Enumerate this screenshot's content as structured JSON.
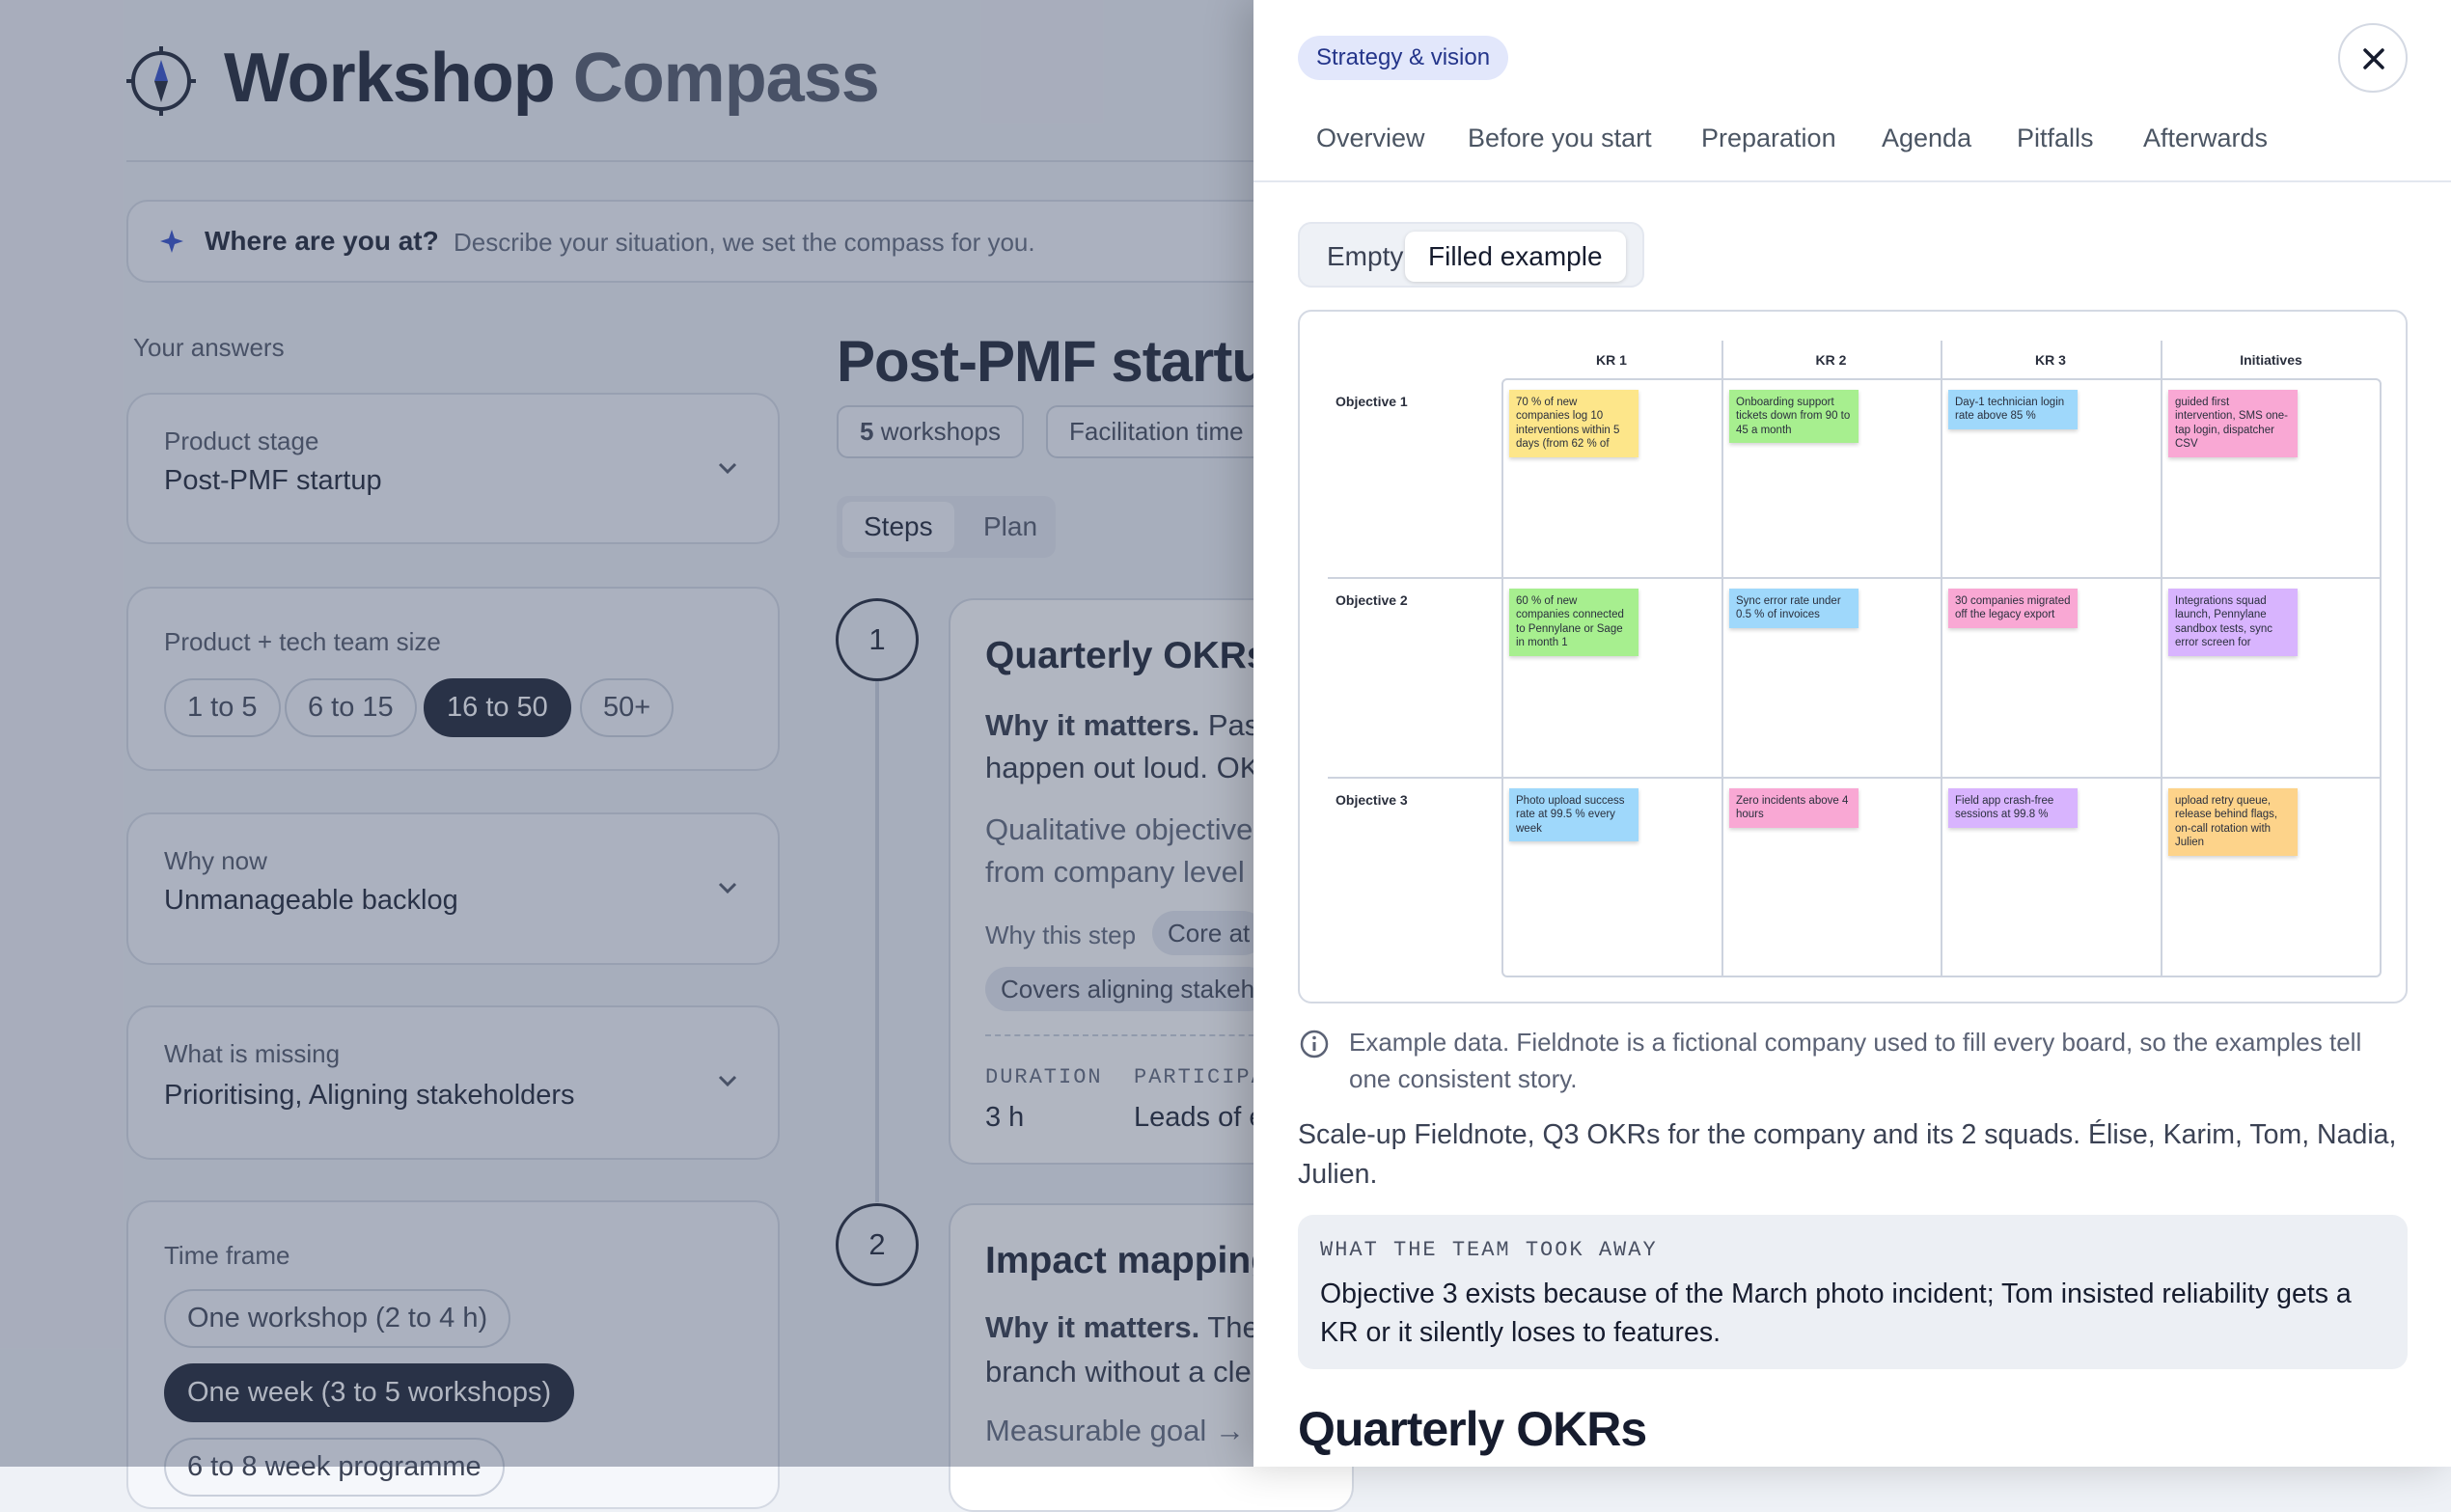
{
  "header": {
    "title": "Workshop",
    "title_accent": "Compass"
  },
  "prompt": {
    "label": "Where are you at?",
    "placeholder": "Describe your situation, we set the compass for you."
  },
  "answers": {
    "heading": "Your answers",
    "fields": [
      {
        "label": "Product stage",
        "value": "Post-PMF startup"
      },
      {
        "label": "Product + tech team size",
        "options": [
          {
            "label": "1 to 5",
            "selected": false
          },
          {
            "label": "6 to 15",
            "selected": false
          },
          {
            "label": "16 to 50",
            "selected": true
          },
          {
            "label": "50+",
            "selected": false
          }
        ]
      },
      {
        "label": "Why now",
        "value": "Unmanageable backlog"
      },
      {
        "label": "What is missing",
        "value": "Prioritising, Aligning stakeholders"
      },
      {
        "label": "Time frame",
        "options": [
          {
            "label": "One workshop (2 to 4 h)",
            "selected": false
          },
          {
            "label": "One week (3 to 5 workshops)",
            "selected": true
          },
          {
            "label": "6 to 8 week programme",
            "selected": false
          }
        ]
      }
    ]
  },
  "results": {
    "title": "Post-PMF startu",
    "workshop_count": 5,
    "workshop_label": "workshops",
    "time_chip": "Facilitation time",
    "view_tabs": [
      {
        "label": "Steps",
        "selected": true
      },
      {
        "label": "Plan",
        "selected": false
      }
    ],
    "steps": [
      {
        "number": 1,
        "title": "Quarterly OKRs",
        "why_label": "Why it matters.",
        "why_lines": [
          "Past",
          "happen out loud. OK"
        ],
        "detail_lines": [
          "Qualitative objective",
          "from company level"
        ],
        "reason_label": "Why this step",
        "reason_chips": [
          "Core at",
          "Covers aligning stakeh"
        ],
        "meta": [
          {
            "label": "DURATION",
            "value": "3 h"
          },
          {
            "label": "PARTICIPA",
            "value": "Leads of e"
          }
        ]
      },
      {
        "number": 2,
        "title": "Impact mapping",
        "why_label": "Why it matters.",
        "why_lines": [
          "The",
          "branch without a cle"
        ],
        "detail_lines": [
          "Measurable goal → a"
        ]
      }
    ]
  },
  "drawer": {
    "tag": "Strategy & vision",
    "tabs": [
      "Overview",
      "Before you start",
      "Preparation",
      "Agenda",
      "Pitfalls",
      "Afterwards"
    ],
    "modes": [
      {
        "label": "Empty",
        "selected": false
      },
      {
        "label": "Filled example",
        "selected": true
      }
    ],
    "board": {
      "columns": [
        "KR 1",
        "KR 2",
        "KR 3",
        "Initiatives"
      ],
      "rows": [
        {
          "label": "Objective 1",
          "notes": [
            {
              "text": "70 % of new companies log 10 interventions within 5 days (from 62 % of",
              "color": "#fde68a"
            },
            {
              "text": "Onboarding support tickets down from 90 to 45 a month",
              "color": "#a7ef8f"
            },
            {
              "text": "Day-1 technician login rate above 85 %",
              "color": "#9fd8fb"
            },
            {
              "text": "guided first intervention, SMS one-tap login, dispatcher CSV",
              "color": "#f9a8d4"
            }
          ]
        },
        {
          "label": "Objective 2",
          "notes": [
            {
              "text": "60 % of new companies connected to Pennylane or Sage in month 1",
              "color": "#a7ef8f"
            },
            {
              "text": "Sync error rate under 0.5 % of invoices",
              "color": "#9fd8fb"
            },
            {
              "text": "30 companies migrated off the legacy export",
              "color": "#f9a8d4"
            },
            {
              "text": "Integrations squad launch, Pennylane sandbox tests, sync error screen for",
              "color": "#d8b4fe"
            }
          ]
        },
        {
          "label": "Objective 3",
          "notes": [
            {
              "text": "Photo upload success rate at 99.5 % every week",
              "color": "#9fd8fb"
            },
            {
              "text": "Zero incidents above 4 hours",
              "color": "#f9a8d4"
            },
            {
              "text": "Field app crash-free sessions at 99.8 %",
              "color": "#d8b4fe"
            },
            {
              "text": "upload retry queue, release behind flags, on-call rotation with Julien",
              "color": "#fdd38a"
            }
          ]
        }
      ]
    },
    "note": "Example data. Fieldnote is a fictional company used to fill every board, so the examples tell one consistent story.",
    "description": "Scale-up Fieldnote, Q3 OKRs for the company and its 2 squads. Élise, Karim, Tom, Nadia, Julien.",
    "takeaway": {
      "label": "WHAT THE TEAM TOOK AWAY",
      "text": "Objective 3 exists because of the March photo incident; Tom insisted reliability gets a KR or it silently loses to features."
    },
    "section_title": "Quarterly OKRs"
  }
}
